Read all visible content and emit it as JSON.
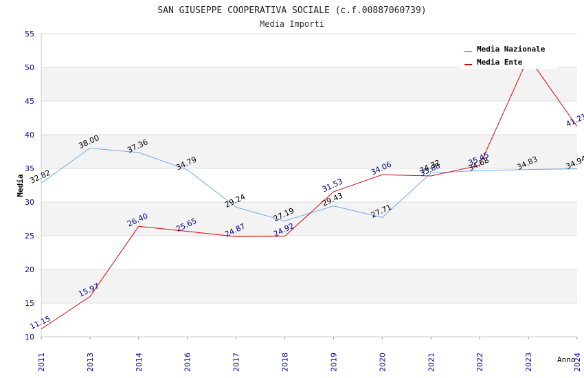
{
  "chart_data": {
    "type": "line",
    "title": "SAN GIUSEPPE COOPERATIVA SOCIALE (c.f.00887060739)",
    "subtitle": "Media Importi",
    "xlabel": "Anno",
    "ylabel": "Media",
    "ylim": [
      10,
      55
    ],
    "yticks": [
      "10",
      "15",
      "20",
      "25",
      "30",
      "35",
      "40",
      "45",
      "50",
      "55"
    ],
    "categories": [
      "2011",
      "2013",
      "2014",
      "2016",
      "2017",
      "2018",
      "2019",
      "2020",
      "2021",
      "2022",
      "2023",
      "2024"
    ],
    "series": [
      {
        "name": "Media Nazionale",
        "color": "#6aaaee",
        "label_color": "#000000",
        "values": [
          32.82,
          38.0,
          37.36,
          34.79,
          29.24,
          27.19,
          29.43,
          27.71,
          34.32,
          34.68,
          34.83,
          34.94
        ],
        "labels": [
          "32.82",
          "38.00",
          "37.36",
          "34.79",
          "29.24",
          "27.19",
          "29.43",
          "27.71",
          "34.32",
          "34.68",
          "34.83",
          "34.94"
        ]
      },
      {
        "name": "Media Ente",
        "color": "#dd0000",
        "label_color": "#000088",
        "values": [
          11.15,
          15.97,
          26.4,
          25.65,
          24.87,
          24.92,
          31.53,
          34.06,
          33.88,
          35.45,
          51.5,
          41.21
        ],
        "labels": [
          "11.15",
          "15.97",
          "26.40",
          "25.65",
          "24.87",
          "24.92",
          "31.53",
          "34.06",
          "33.88",
          "35.45",
          "",
          "41.21"
        ]
      }
    ],
    "legend_position": "top-right",
    "grid": true
  }
}
